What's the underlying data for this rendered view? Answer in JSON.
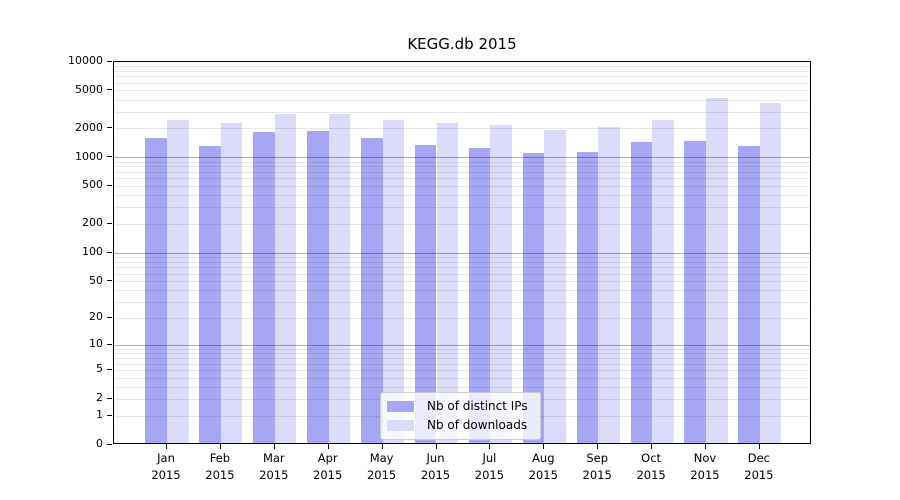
{
  "chart_data": {
    "type": "bar",
    "title": "KEGG.db 2015",
    "xlabel": "",
    "ylabel": "",
    "categories": [
      "Jan 2015",
      "Feb 2015",
      "Mar 2015",
      "Apr 2015",
      "May 2015",
      "Jun 2015",
      "Jul 2015",
      "Aug 2015",
      "Sep 2015",
      "Oct 2015",
      "Nov 2015",
      "Dec 2015"
    ],
    "series": [
      {
        "name": "Nb of distinct IPs",
        "color": "#a6a6f5",
        "values": [
          1520,
          1270,
          1770,
          1800,
          1540,
          1290,
          1210,
          1060,
          1090,
          1390,
          1440,
          1260
        ]
      },
      {
        "name": "Nb of downloads",
        "color": "#dcdcfa",
        "values": [
          2360,
          2180,
          2750,
          2710,
          2380,
          2200,
          2080,
          1850,
          2010,
          2360,
          3980,
          3560
        ]
      }
    ],
    "y_axis": {
      "scale": "log10(1+x)",
      "min": 0,
      "max": 10000,
      "ticks": [
        0,
        1,
        2,
        5,
        10,
        20,
        50,
        100,
        200,
        500,
        1000,
        2000,
        5000,
        10000
      ]
    },
    "grid": {
      "minor_values_per_decade": [
        2,
        3,
        4,
        5,
        6,
        7,
        8,
        9
      ],
      "major_values": [
        10,
        100,
        1000
      ],
      "orientation": "horizontal"
    },
    "legend_position": "inside-bottom-center"
  }
}
